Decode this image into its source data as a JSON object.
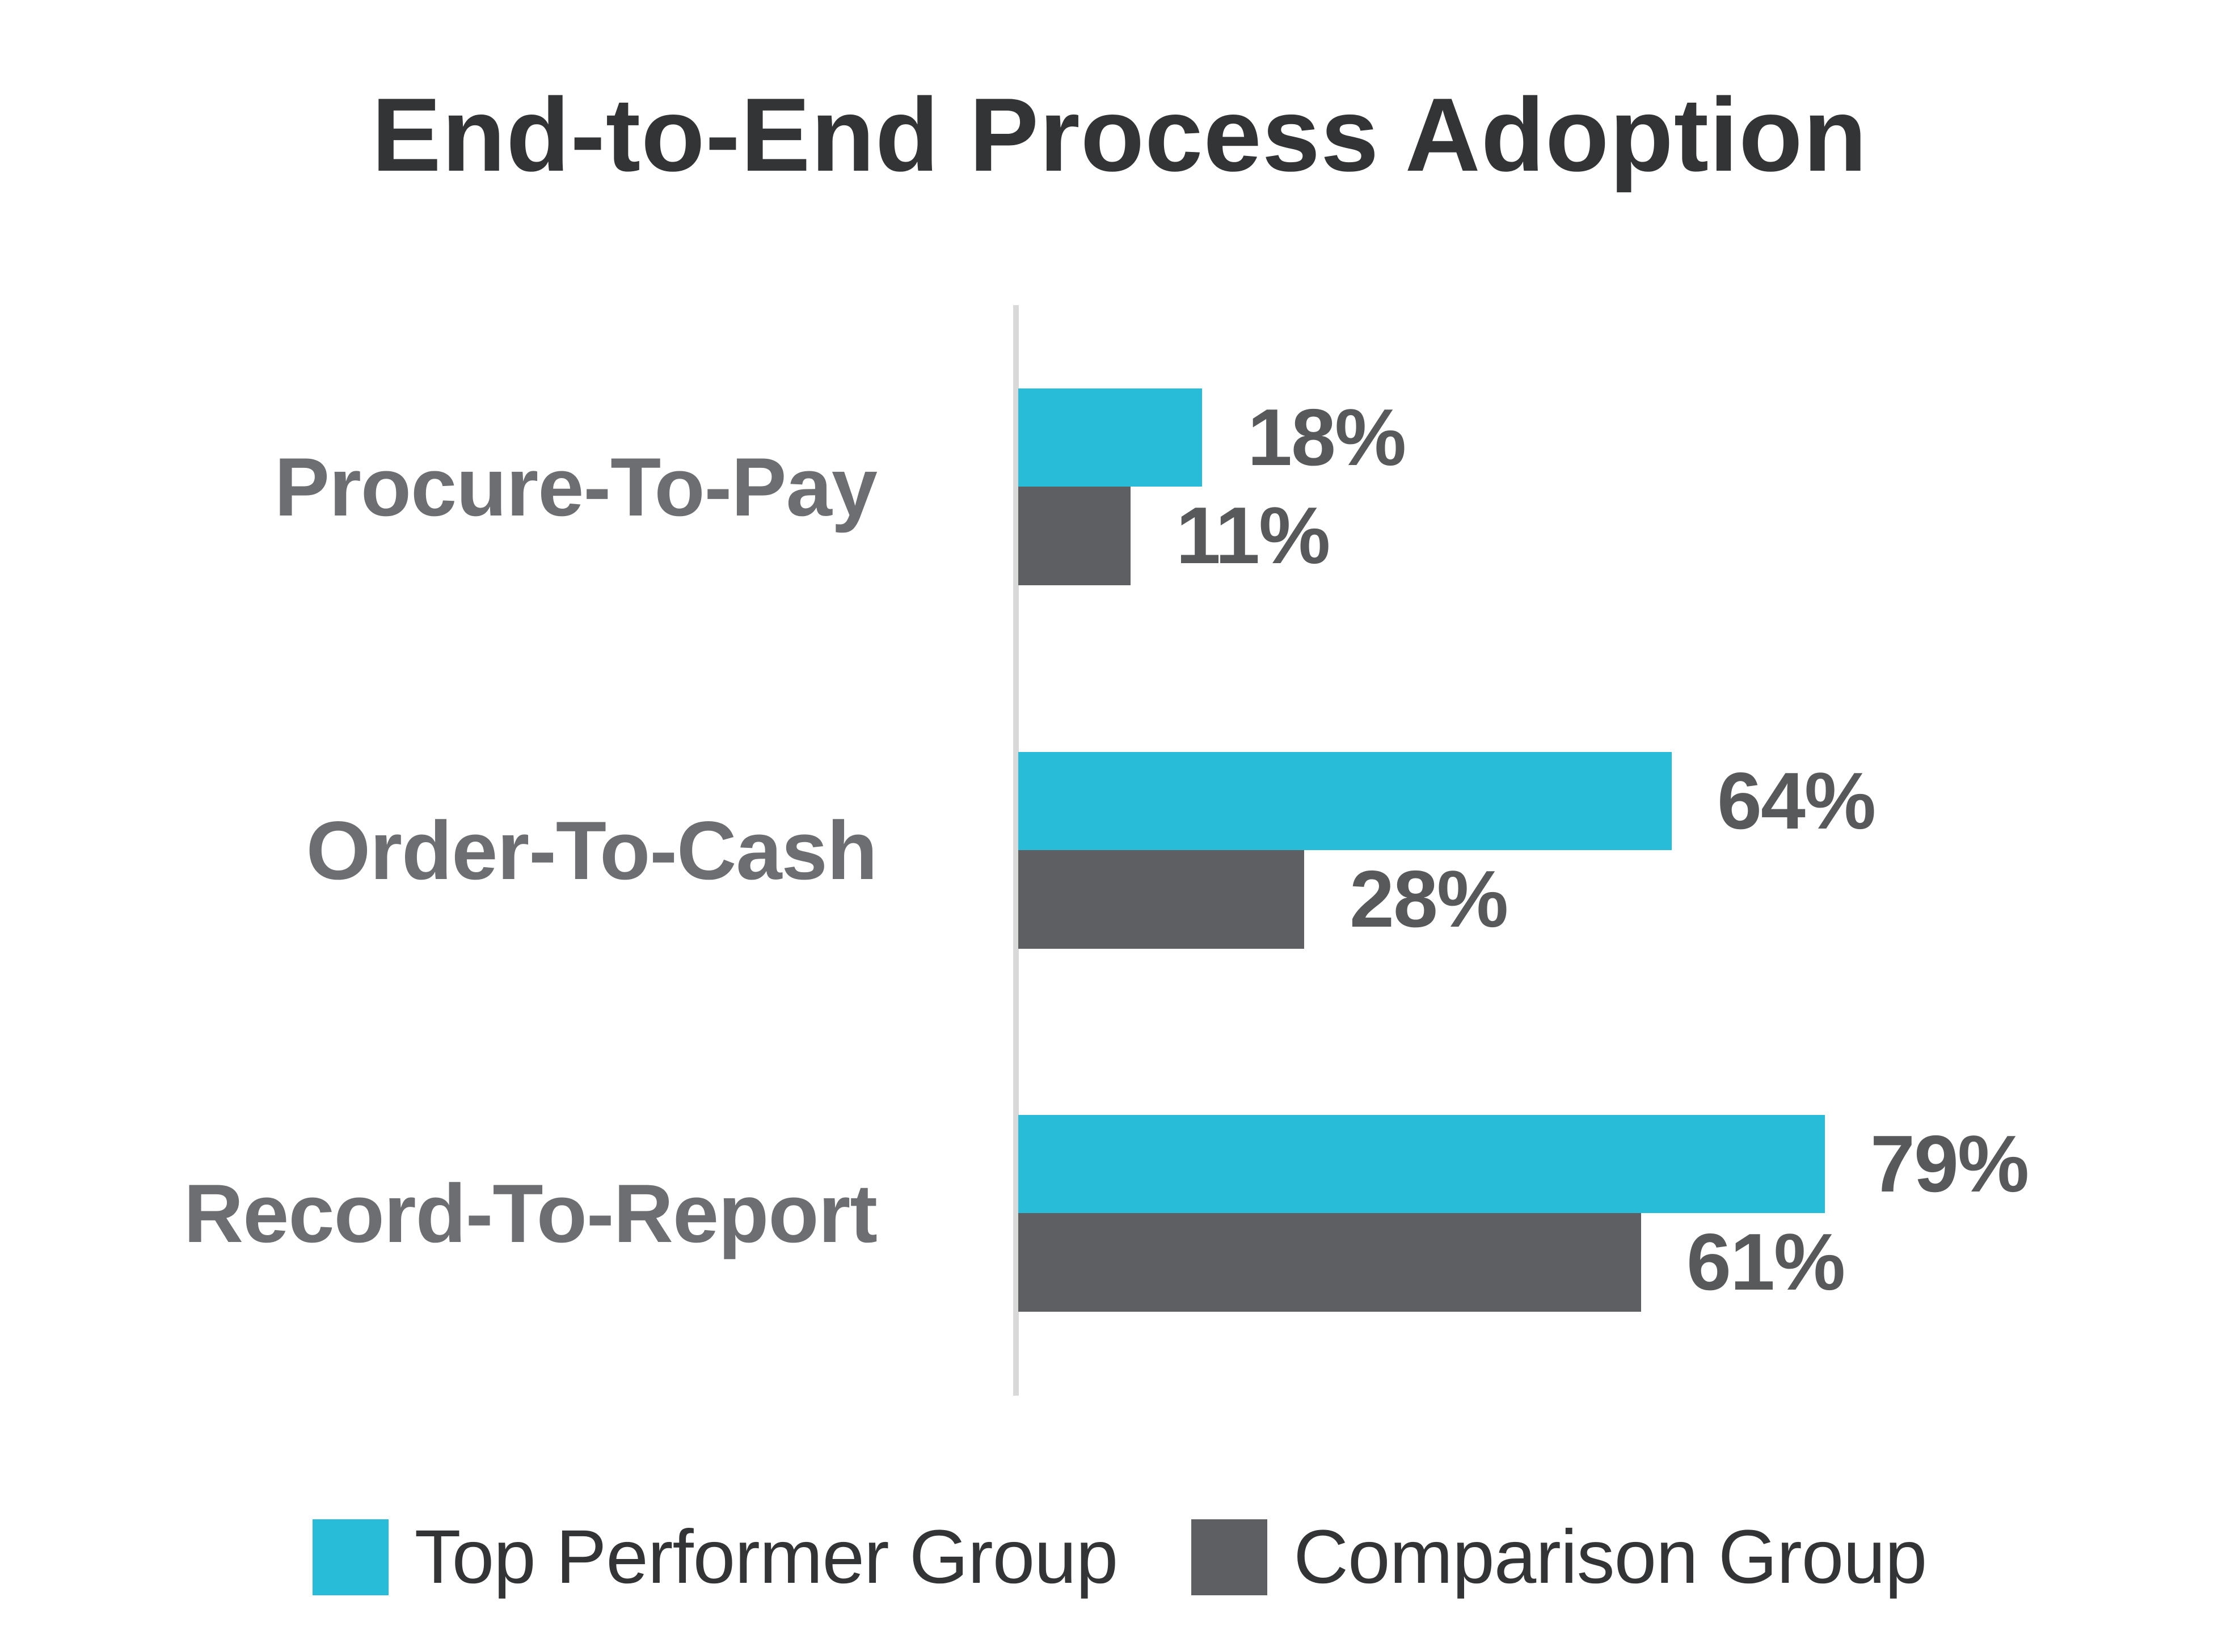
{
  "chart_data": {
    "type": "bar",
    "orientation": "horizontal",
    "title": "End-to-End Process Adoption",
    "categories": [
      "Procure-To-Pay",
      "Order-To-Cash",
      "Record-To-Report"
    ],
    "series": [
      {
        "name": "Top Performer Group",
        "color": "#29bcd8",
        "values": [
          18,
          64,
          79
        ]
      },
      {
        "name": "Comparison Group",
        "color": "#5d5f62",
        "values": [
          11,
          28,
          61
        ]
      }
    ],
    "rows": [
      {
        "category": "Procure-To-Pay",
        "top_label": "18%",
        "bottom_label": "11%"
      },
      {
        "category": "Order-To-Cash",
        "top_label": "64%",
        "bottom_label": "28%"
      },
      {
        "category": "Record-To-Report",
        "top_label": "79%",
        "bottom_label": "61%"
      }
    ],
    "value_labels_shown": true,
    "axis": {
      "value_axis_ticks_visible": false,
      "gridlines": false,
      "baseline_color": "#d9d9d9"
    },
    "legend_position": "bottom",
    "xlim": [
      0,
      100
    ]
  },
  "legend": {
    "items": [
      {
        "label": "Top Performer Group",
        "color": "#29bcd8"
      },
      {
        "label": "Comparison Group",
        "color": "#5d5f62"
      }
    ]
  },
  "colors": {
    "background": "#ffffff",
    "title_text": "#333436",
    "category_text": "#6d6e71",
    "value_text": "#58595b",
    "axis_line": "#d9d9d9",
    "top_series": "#29bcd8",
    "comparison_series": "#5d5f62"
  }
}
